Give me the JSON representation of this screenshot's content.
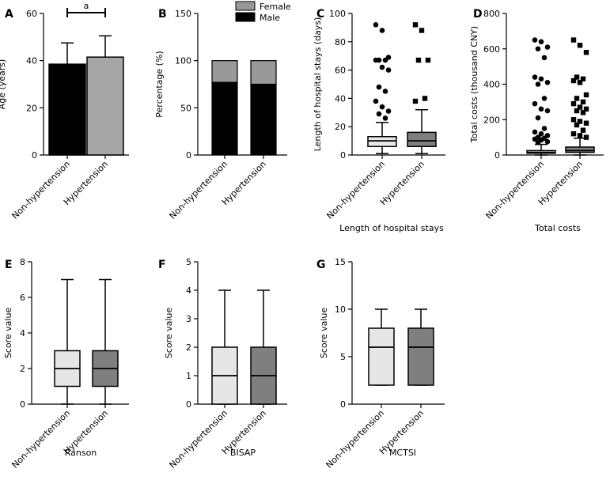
{
  "colors": {
    "nonhyp": "#e6e6e6",
    "hyp": "#7f7f7f",
    "black": "#000000",
    "female": "#999999"
  },
  "categories": [
    "Non-hypertension",
    "Hypertension"
  ],
  "chart_data": [
    {
      "panel": "A",
      "type": "bar",
      "title": "",
      "xlabel": "",
      "ylabel": "Age (years)",
      "ylim": [
        0,
        60
      ],
      "yticks": [
        0,
        20,
        40,
        60
      ],
      "categories": [
        "Non-hypertension",
        "Hypertension"
      ],
      "values": [
        38.5,
        41.5
      ],
      "errors": [
        9,
        9
      ],
      "annotation": "a"
    },
    {
      "panel": "B",
      "type": "bar",
      "stacked": true,
      "title": "",
      "xlabel": "",
      "ylabel": "Percentage (%)",
      "ylim": [
        0,
        150
      ],
      "yticks": [
        0,
        50,
        100,
        150
      ],
      "categories": [
        "Non-hypertension",
        "Hypertension"
      ],
      "series": [
        {
          "name": "Male",
          "values": [
            77,
            75
          ]
        },
        {
          "name": "Female",
          "values": [
            23,
            25
          ]
        }
      ],
      "legend": "top"
    },
    {
      "panel": "C",
      "type": "box",
      "title": "",
      "xlabel": "Length of hospital stays",
      "ylabel": "Length of hospital stays (days)",
      "ylim": [
        0,
        100
      ],
      "yticks": [
        0,
        20,
        40,
        60,
        80,
        100
      ],
      "categories": [
        "Non-hypertension",
        "Hypertension"
      ],
      "boxes": [
        {
          "min": 1,
          "q1": 6,
          "median": 10,
          "q3": 13,
          "max": 23,
          "outliers": [
            92,
            88,
            69,
            67,
            67,
            67,
            62,
            60,
            48,
            45,
            38,
            34,
            31,
            29,
            26
          ]
        },
        {
          "min": 1,
          "q1": 6,
          "median": 10,
          "q3": 16,
          "max": 32,
          "outliers": [
            92,
            88,
            67,
            67,
            40,
            38
          ]
        }
      ]
    },
    {
      "panel": "D",
      "type": "box",
      "title": "",
      "xlabel": "Total costs",
      "ylabel": "Total costs (thousand CNY)",
      "ylim": [
        0,
        800
      ],
      "yticks": [
        0,
        200,
        400,
        600,
        800
      ],
      "categories": [
        "Non-hypertension",
        "Hypertension"
      ],
      "boxes": [
        {
          "min": 0,
          "q1": 10,
          "median": 15,
          "q3": 25,
          "max": 60,
          "outliers": [
            650,
            640,
            610,
            600,
            550,
            440,
            430,
            410,
            400,
            320,
            290,
            260,
            250,
            210,
            150,
            130,
            120,
            110,
            100,
            95,
            90,
            85,
            75,
            70
          ]
        },
        {
          "min": 0,
          "q1": 15,
          "median": 25,
          "q3": 45,
          "max": 95,
          "outliers": [
            650,
            620,
            580,
            440,
            430,
            420,
            410,
            340,
            320,
            300,
            290,
            270,
            260,
            250,
            240,
            200,
            190,
            180,
            170,
            140,
            120,
            110,
            100
          ]
        }
      ]
    },
    {
      "panel": "E",
      "type": "box",
      "title": "",
      "xlabel": "Ranson",
      "ylabel": "Score value",
      "ylim": [
        0,
        8
      ],
      "yticks": [
        0,
        2,
        4,
        6,
        8
      ],
      "categories": [
        "Non-hypertension",
        "Hypertension"
      ],
      "boxes": [
        {
          "min": 0,
          "q1": 1,
          "median": 2,
          "q3": 3,
          "max": 7,
          "outliers": []
        },
        {
          "min": 0,
          "q1": 1,
          "median": 2,
          "q3": 3,
          "max": 7,
          "outliers": []
        }
      ]
    },
    {
      "panel": "F",
      "type": "box",
      "title": "",
      "xlabel": "BISAP",
      "ylabel": "Score value",
      "ylim": [
        0,
        5
      ],
      "yticks": [
        0,
        1,
        2,
        3,
        4,
        5
      ],
      "categories": [
        "Non-hypertension",
        "Hypertension"
      ],
      "boxes": [
        {
          "min": 0,
          "q1": 0,
          "median": 1,
          "q3": 2,
          "max": 4,
          "outliers": []
        },
        {
          "min": 0,
          "q1": 0,
          "median": 1,
          "q3": 2,
          "max": 4,
          "outliers": []
        }
      ]
    },
    {
      "panel": "G",
      "type": "box",
      "title": "",
      "xlabel": "MCTSI",
      "ylabel": "Score value",
      "ylim": [
        0,
        15
      ],
      "yticks": [
        0,
        5,
        10,
        15
      ],
      "categories": [
        "Non-hypertension",
        "Hypertension"
      ],
      "boxes": [
        {
          "min": 2,
          "q1": 2,
          "median": 6,
          "q3": 8,
          "max": 10,
          "outliers": []
        },
        {
          "min": 2,
          "q1": 2,
          "median": 6,
          "q3": 8,
          "max": 10,
          "outliers": []
        }
      ]
    }
  ]
}
